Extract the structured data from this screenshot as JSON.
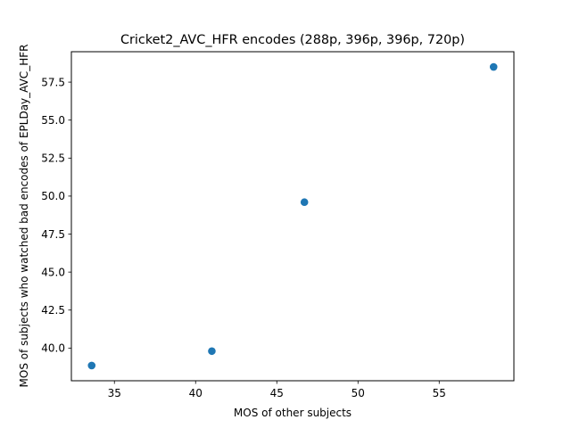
{
  "chart_data": {
    "type": "scatter",
    "title": "Cricket2_AVC_HFR encodes (288p, 396p, 396p, 720p)",
    "xlabel": "MOS of other subjects",
    "ylabel": "MOS of subjects who watched bad encodes of EPLDay_AVC_HFR",
    "xlim": [
      32.35,
      59.6
    ],
    "ylim": [
      37.85,
      59.5
    ],
    "xticks": [
      35,
      40,
      45,
      50,
      55
    ],
    "yticks": [
      40.0,
      42.5,
      45.0,
      47.5,
      50.0,
      52.5,
      55.0,
      57.5
    ],
    "xtick_labels": [
      "35",
      "40",
      "45",
      "50",
      "55"
    ],
    "ytick_labels": [
      "40.0",
      "42.5",
      "45.0",
      "47.5",
      "50.0",
      "52.5",
      "55.0",
      "57.5"
    ],
    "grid": false,
    "marker_color": "#1f77b4",
    "series": [
      {
        "points": [
          {
            "x": 33.6,
            "y": 38.85
          },
          {
            "x": 41.0,
            "y": 39.8
          },
          {
            "x": 46.7,
            "y": 49.6
          },
          {
            "x": 58.35,
            "y": 58.5
          }
        ]
      }
    ]
  }
}
